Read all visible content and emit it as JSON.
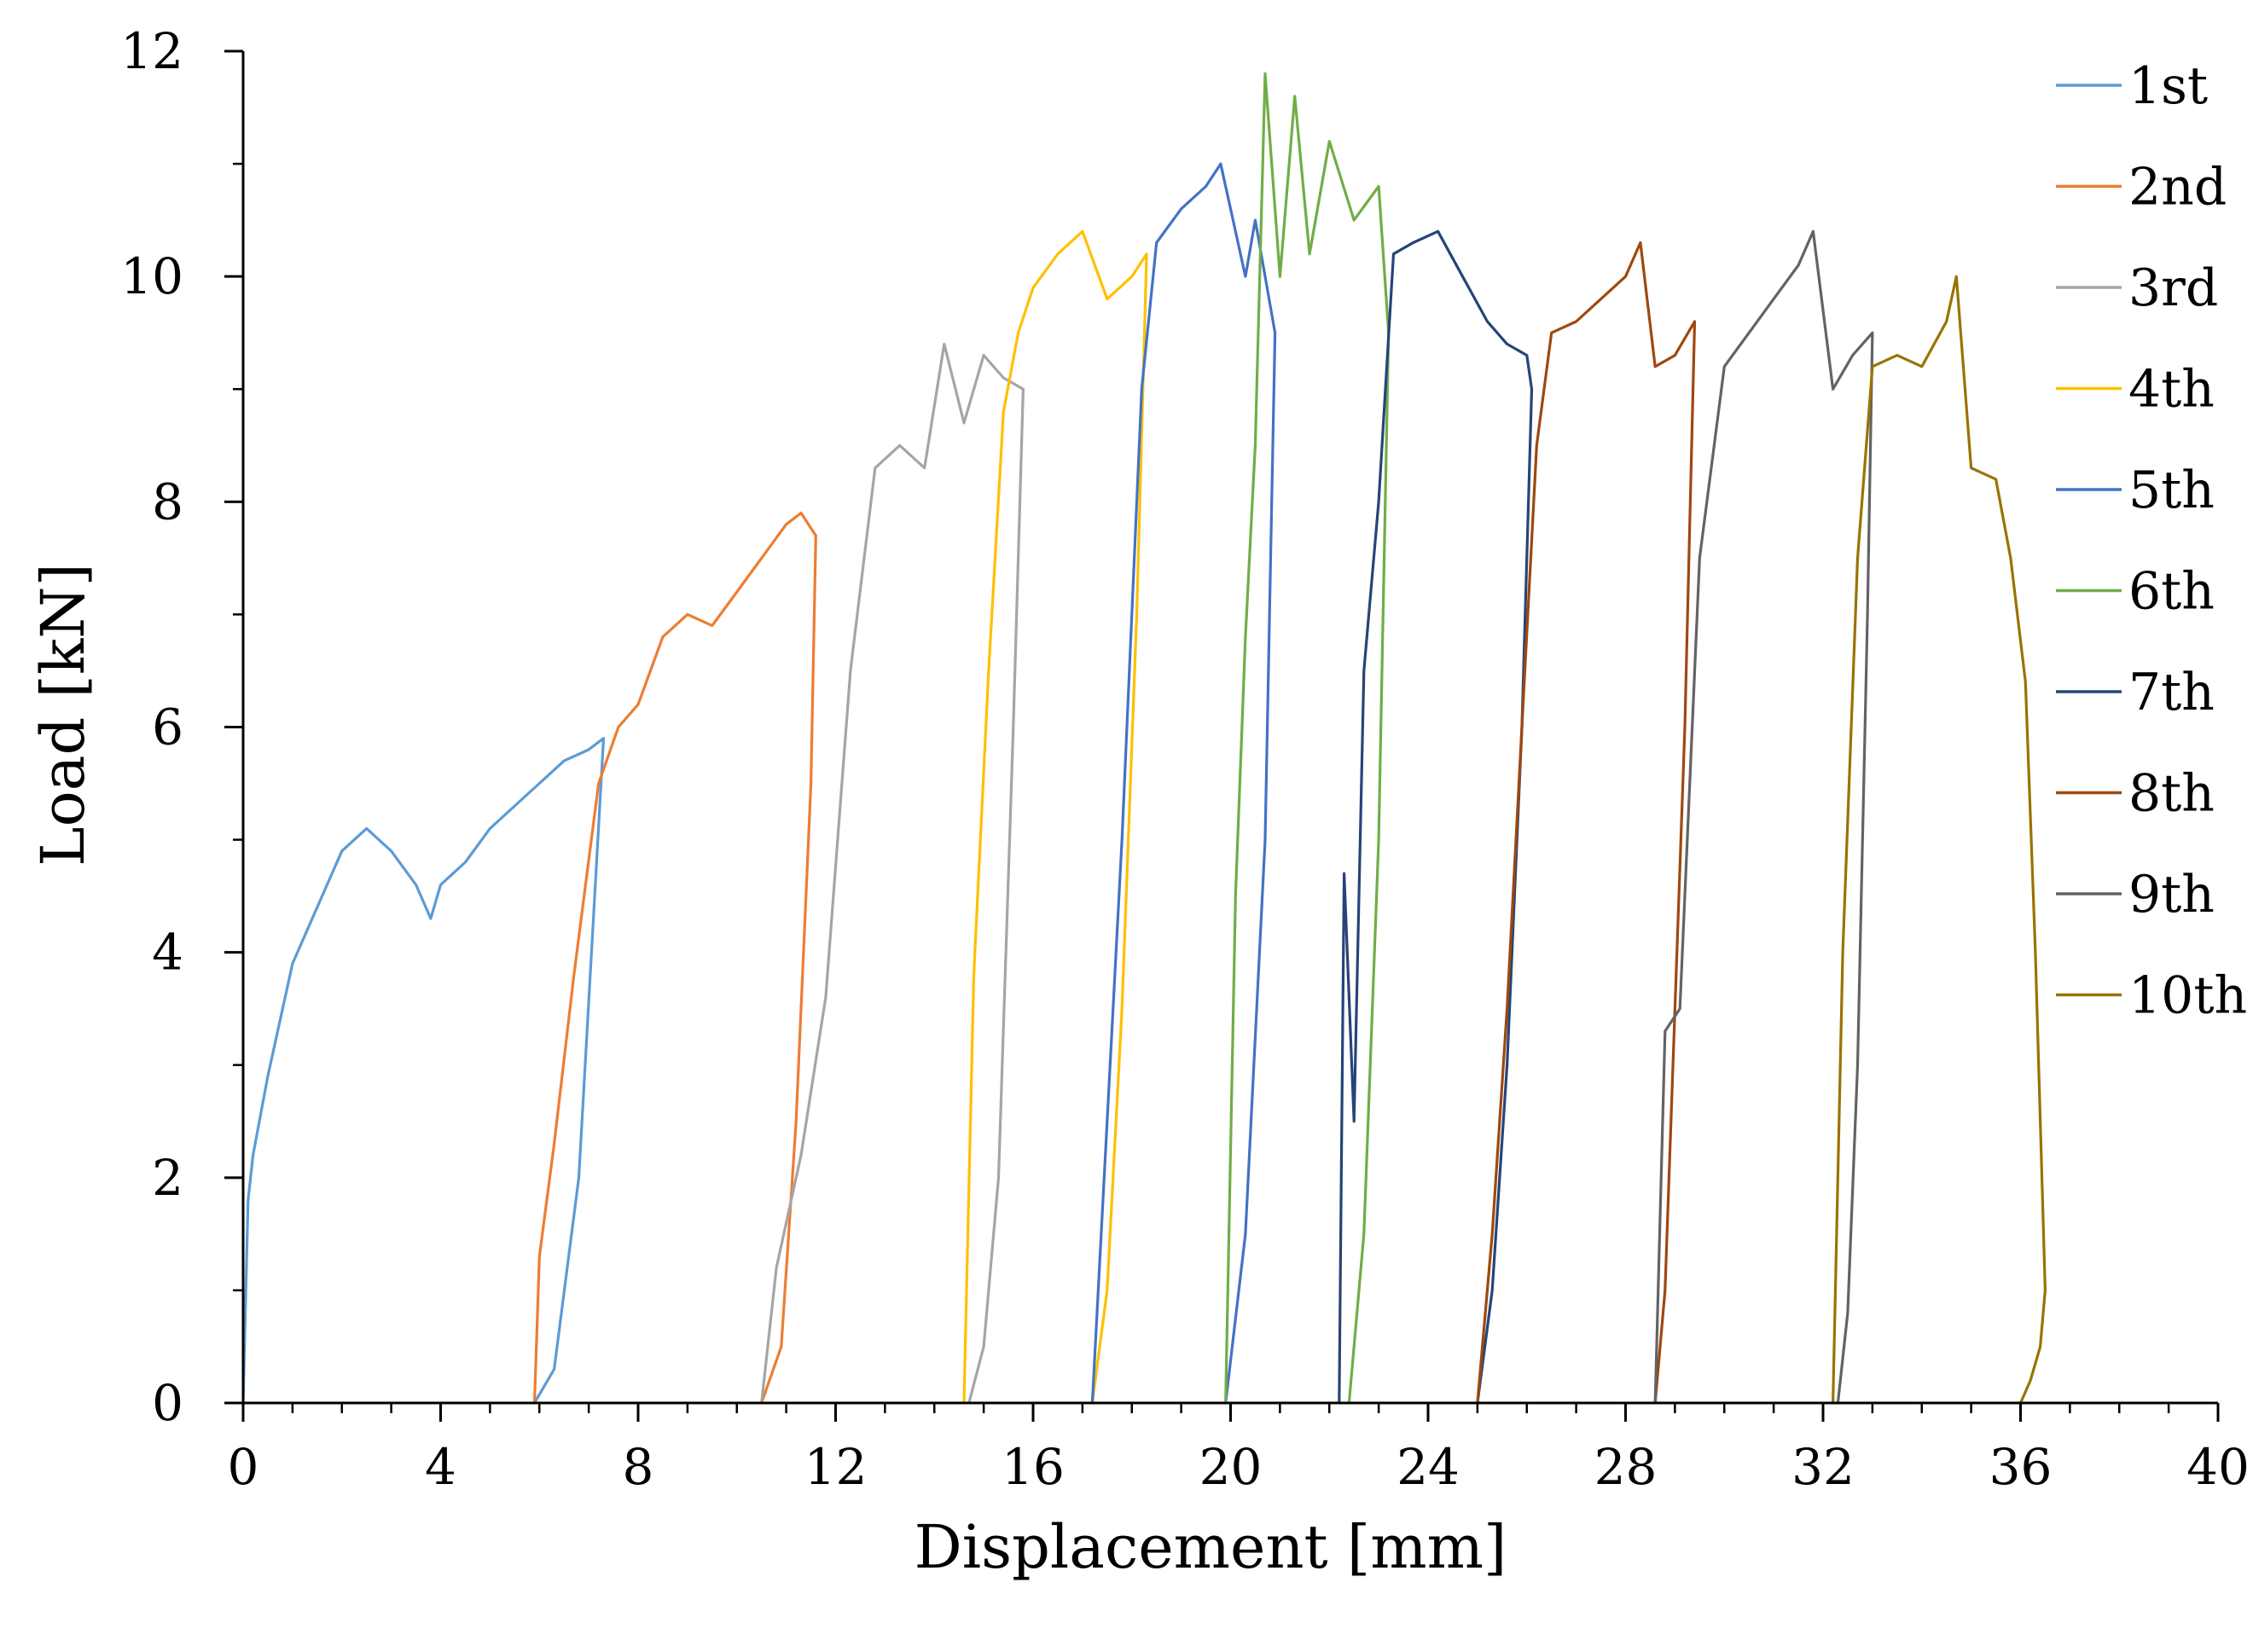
{
  "chart_data": {
    "type": "line",
    "title": "",
    "xlabel": "Displacement [mm]",
    "ylabel": "Load [kN]",
    "xlim": [
      0,
      40
    ],
    "ylim": [
      0,
      12
    ],
    "xticks": [
      "0",
      "4",
      "8",
      "12",
      "16",
      "20",
      "24",
      "28",
      "32",
      "36",
      "40"
    ],
    "yticks": [
      "0",
      "2",
      "4",
      "6",
      "8",
      "10",
      "12"
    ],
    "grid": false,
    "legend_position": "right",
    "series": [
      {
        "name": "1st",
        "color": "#5b9bd5",
        "x": [
          0,
          0.1,
          0.2,
          0.5,
          1.0,
          1.5,
          2.0,
          2.5,
          3.0,
          3.5,
          3.8,
          4.0,
          4.5,
          5.0,
          5.5,
          6.0,
          6.5,
          7.0,
          7.3,
          6.8,
          6.3,
          5.9
        ],
        "y": [
          0,
          1.8,
          2.2,
          2.9,
          3.9,
          4.4,
          4.9,
          5.1,
          4.9,
          4.6,
          4.3,
          4.6,
          4.8,
          5.1,
          5.3,
          5.5,
          5.7,
          5.8,
          5.9,
          2.0,
          0.3,
          0
        ]
      },
      {
        "name": "2nd",
        "color": "#ed7d31",
        "x": [
          5.9,
          6.0,
          6.3,
          6.7,
          7.2,
          7.6,
          8.0,
          8.5,
          9.0,
          9.5,
          10.0,
          10.5,
          11.0,
          11.3,
          11.6,
          11.5,
          11.2,
          10.9,
          10.5
        ],
        "y": [
          0,
          1.3,
          2.3,
          3.8,
          5.5,
          6.0,
          6.2,
          6.8,
          7.0,
          6.9,
          7.2,
          7.5,
          7.8,
          7.9,
          7.7,
          5.5,
          2.5,
          0.5,
          0
        ]
      },
      {
        "name": "3rd",
        "color": "#a5a5a5",
        "x": [
          10.5,
          10.8,
          11.3,
          11.8,
          12.3,
          12.8,
          13.3,
          13.8,
          14.2,
          14.6,
          15.0,
          15.4,
          15.8,
          15.6,
          15.3,
          15.0,
          14.7
        ],
        "y": [
          0,
          1.2,
          2.2,
          3.6,
          6.5,
          8.3,
          8.5,
          8.3,
          9.4,
          8.7,
          9.3,
          9.1,
          9.0,
          6.0,
          2.0,
          0.5,
          0
        ]
      },
      {
        "name": "4th",
        "color": "#ffc000",
        "x": [
          14.6,
          14.8,
          15.1,
          15.4,
          15.7,
          16.0,
          16.5,
          17.0,
          17.5,
          18.0,
          18.3,
          18.1,
          17.8,
          17.5,
          17.2
        ],
        "y": [
          0,
          3.8,
          6.5,
          8.8,
          9.5,
          9.9,
          10.2,
          10.4,
          9.8,
          10.0,
          10.2,
          7.0,
          3.5,
          1.0,
          0
        ]
      },
      {
        "name": "5th",
        "color": "#4472c4",
        "x": [
          17.2,
          17.5,
          17.8,
          18.2,
          18.5,
          19.0,
          19.5,
          19.8,
          20.0,
          20.3,
          20.5,
          20.9,
          20.7,
          20.3,
          19.9
        ],
        "y": [
          0,
          2.5,
          5.0,
          9.0,
          10.3,
          10.6,
          10.8,
          11.0,
          10.6,
          10.0,
          10.5,
          9.5,
          5.0,
          1.5,
          0
        ]
      },
      {
        "name": "6th",
        "color": "#70ad47",
        "x": [
          19.9,
          20.1,
          20.3,
          20.5,
          20.7,
          21.0,
          21.3,
          21.6,
          22.0,
          22.5,
          23.0,
          23.2,
          23.0,
          22.7,
          22.4
        ],
        "y": [
          0,
          4.5,
          6.8,
          8.5,
          11.8,
          10.0,
          11.6,
          10.2,
          11.2,
          10.5,
          10.8,
          9.5,
          5.0,
          1.5,
          0
        ]
      },
      {
        "name": "7th",
        "color": "#264478",
        "x": [
          22.2,
          22.3,
          22.5,
          22.7,
          23.0,
          23.3,
          23.7,
          24.2,
          24.7,
          25.2,
          25.6,
          26.0,
          26.1,
          25.9,
          25.6,
          25.3,
          25.0
        ],
        "y": [
          0,
          4.7,
          2.5,
          6.5,
          8.0,
          10.2,
          10.3,
          10.4,
          10.0,
          9.6,
          9.4,
          9.3,
          9.0,
          6.0,
          3.0,
          1.0,
          0
        ]
      },
      {
        "name": "8th",
        "color": "#9e480e",
        "x": [
          25.0,
          25.3,
          25.6,
          25.9,
          26.2,
          26.5,
          27.0,
          27.5,
          28.0,
          28.3,
          28.6,
          29.0,
          29.4,
          29.2,
          29.0,
          28.8,
          28.6
        ],
        "y": [
          0,
          1.5,
          3.5,
          6.0,
          8.5,
          9.5,
          9.6,
          9.8,
          10.0,
          10.3,
          9.2,
          9.3,
          9.6,
          6.0,
          3.5,
          1.0,
          0
        ]
      },
      {
        "name": "9th",
        "color": "#636363",
        "x": [
          28.6,
          28.8,
          29.1,
          29.5,
          30.0,
          30.5,
          31.0,
          31.5,
          31.8,
          32.2,
          32.6,
          33.0,
          32.9,
          32.7,
          32.5,
          32.3
        ],
        "y": [
          0,
          3.3,
          3.5,
          7.5,
          9.2,
          9.5,
          9.8,
          10.1,
          10.4,
          9.0,
          9.3,
          9.5,
          7.0,
          3.0,
          0.8,
          0
        ]
      },
      {
        "name": "10th",
        "color": "#997300",
        "x": [
          32.2,
          32.4,
          32.7,
          33.0,
          33.5,
          34.0,
          34.5,
          34.7,
          35.0,
          35.5,
          35.8,
          36.1,
          36.3,
          36.5,
          36.4,
          36.2,
          36.0
        ],
        "y": [
          0,
          4.0,
          7.5,
          9.2,
          9.3,
          9.2,
          9.6,
          10.0,
          8.3,
          8.2,
          7.5,
          6.4,
          4.0,
          1.0,
          0.5,
          0.2,
          0
        ]
      }
    ]
  }
}
